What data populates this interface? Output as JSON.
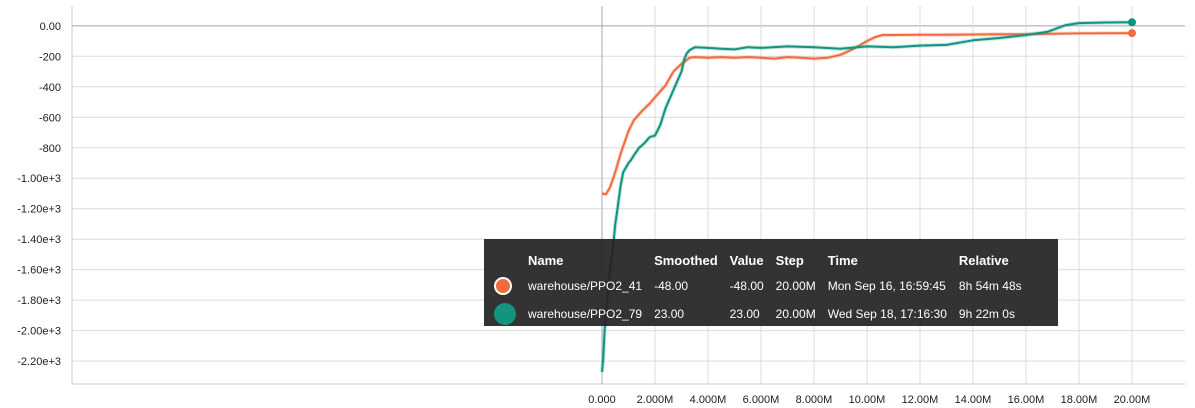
{
  "chart_data": {
    "type": "line",
    "xlim": [
      -20000000,
      22000000
    ],
    "ylim": [
      -2350,
      130
    ],
    "x_ticks": [
      0,
      2000000,
      4000000,
      6000000,
      8000000,
      10000000,
      12000000,
      14000000,
      16000000,
      18000000,
      20000000
    ],
    "x_tick_labels": [
      "0.000",
      "2.000M",
      "4.000M",
      "6.000M",
      "8.000M",
      "10.00M",
      "12.00M",
      "14.00M",
      "16.00M",
      "18.00M",
      "20.00M"
    ],
    "y_ticks": [
      0,
      -200,
      -400,
      -600,
      -800,
      -1000,
      -1200,
      -1400,
      -1600,
      -1800,
      -2000,
      -2200
    ],
    "y_tick_labels": [
      "0.00",
      "-200",
      "-400",
      "-600",
      "-800",
      "-1.00e+3",
      "-1.20e+3",
      "-1.40e+3",
      "-1.60e+3",
      "-1.80e+3",
      "-2.00e+3",
      "-2.20e+3"
    ],
    "grid": true,
    "series": [
      {
        "name": "warehouse/PPO2_41",
        "color": "#f26b3f",
        "x": [
          0,
          150000,
          300000,
          500000,
          700000,
          900000,
          1000000,
          1200000,
          1500000,
          1800000,
          2100000,
          2400000,
          2700000,
          3000000,
          3300000,
          3500000,
          4000000,
          4500000,
          5000000,
          5500000,
          6000000,
          6500000,
          7000000,
          7500000,
          8000000,
          8500000,
          9000000,
          9500000,
          10000000,
          10300000,
          10600000,
          11000000,
          12000000,
          13000000,
          14000000,
          15000000,
          16000000,
          17000000,
          18000000,
          19000000,
          20000000
        ],
        "y": [
          -1100,
          -1105,
          -1060,
          -960,
          -840,
          -740,
          -690,
          -620,
          -560,
          -510,
          -450,
          -390,
          -300,
          -250,
          -210,
          -205,
          -210,
          -205,
          -210,
          -205,
          -210,
          -215,
          -205,
          -210,
          -215,
          -210,
          -190,
          -150,
          -100,
          -75,
          -60,
          -60,
          -58,
          -58,
          -57,
          -56,
          -55,
          -52,
          -50,
          -49,
          -48
        ]
      },
      {
        "name": "warehouse/PPO2_79",
        "color": "#12947f",
        "x": [
          0,
          50000,
          100000,
          200000,
          300000,
          400000,
          500000,
          600000,
          700000,
          800000,
          900000,
          1000000,
          1100000,
          1200000,
          1400000,
          1600000,
          1800000,
          2000000,
          2200000,
          2400000,
          2600000,
          2800000,
          3000000,
          3100000,
          3200000,
          3300000,
          3500000,
          4000000,
          4500000,
          5000000,
          5500000,
          6000000,
          7000000,
          8000000,
          9000000,
          10000000,
          11000000,
          12000000,
          13000000,
          14000000,
          15000000,
          16000000,
          16800000,
          17500000,
          18000000,
          19000000,
          20000000
        ],
        "y": [
          -2270,
          -2180,
          -2000,
          -1780,
          -1600,
          -1480,
          -1300,
          -1180,
          -1050,
          -960,
          -930,
          -900,
          -880,
          -850,
          -800,
          -770,
          -730,
          -720,
          -650,
          -540,
          -460,
          -380,
          -300,
          -220,
          -180,
          -160,
          -140,
          -145,
          -150,
          -155,
          -140,
          -145,
          -135,
          -140,
          -150,
          -135,
          -140,
          -130,
          -125,
          -95,
          -80,
          -60,
          -40,
          5,
          18,
          22,
          23
        ]
      }
    ],
    "tooltip": {
      "headers": [
        "Name",
        "Smoothed",
        "Value",
        "Step",
        "Time",
        "Relative"
      ],
      "rows": [
        {
          "name": "warehouse/PPO2_41",
          "smoothed": "-48.00",
          "value": "-48.00",
          "step": "20.00M",
          "time": "Mon Sep 16, 16:59:45",
          "relative": "8h 54m 48s",
          "color": "#f26b3f",
          "selected": true
        },
        {
          "name": "warehouse/PPO2_79",
          "smoothed": "23.00",
          "value": "23.00",
          "step": "20.00M",
          "time": "Wed Sep 18, 17:16:30",
          "relative": "9h 22m 0s",
          "color": "#12947f",
          "selected": false
        }
      ]
    }
  }
}
